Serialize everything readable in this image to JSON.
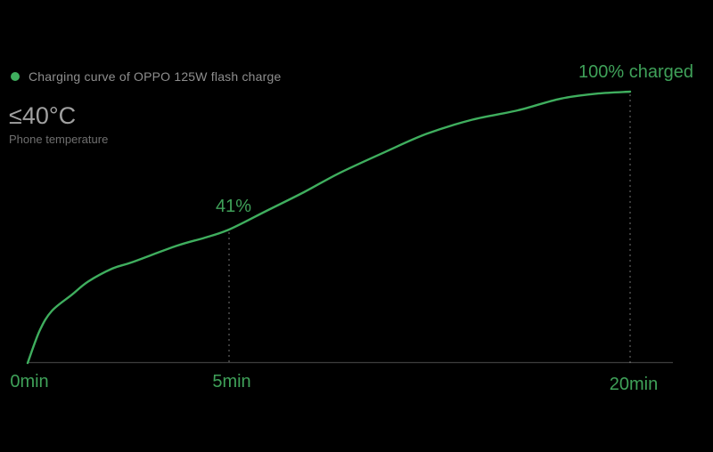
{
  "legend": {
    "label": "Charging curve of OPPO 125W flash charge"
  },
  "temperature": {
    "value": "≤40°C",
    "caption": "Phone temperature"
  },
  "annotations": {
    "end_label": "100% charged",
    "mid_label": "41%"
  },
  "x_ticks": [
    "0min",
    "5min",
    "20min"
  ],
  "colors": {
    "background": "#000000",
    "curve_green": "#3fae5e",
    "text_green": "#3fa159",
    "axis_gray": "#3d3d3d",
    "dash_gray": "#9b9b9b",
    "legend_text": "#8e8e8e",
    "temp_value": "#a0a0a0",
    "temp_caption": "#6f6f6f"
  },
  "chart_data": {
    "type": "line",
    "title": "Charging curve of OPPO 125W flash charge",
    "xlabel": "",
    "ylabel": "",
    "ylim": [
      0,
      100
    ],
    "x_tick_labels": [
      "0min",
      "5min",
      "20min"
    ],
    "x_tick_minutes": [
      0,
      5,
      20
    ],
    "grid": false,
    "legend_position": "top-left",
    "annotations": [
      {
        "t": 5,
        "pct": 41,
        "text": "41%"
      },
      {
        "t": 20,
        "pct": 100,
        "text": "100% charged"
      }
    ],
    "key_points": [
      {
        "t": 0,
        "pct": 0
      },
      {
        "t": 5,
        "pct": 41
      },
      {
        "t": 20,
        "pct": 100
      }
    ],
    "series": [
      {
        "name": "charge_percent",
        "points": [
          {
            "t": 0,
            "pct": 0
          },
          {
            "t": 0.3,
            "pct": 10
          },
          {
            "t": 0.6,
            "pct": 16
          },
          {
            "t": 1.1,
            "pct": 21
          },
          {
            "t": 1.5,
            "pct": 25
          },
          {
            "t": 2.1,
            "pct": 29
          },
          {
            "t": 2.6,
            "pct": 31
          },
          {
            "t": 3.7,
            "pct": 36
          },
          {
            "t": 4.4,
            "pct": 38.5
          },
          {
            "t": 5,
            "pct": 41
          },
          {
            "t": 6.4,
            "pct": 49
          },
          {
            "t": 7.8,
            "pct": 57
          },
          {
            "t": 9.1,
            "pct": 65
          },
          {
            "t": 10.8,
            "pct": 74
          },
          {
            "t": 12.4,
            "pct": 82
          },
          {
            "t": 14.1,
            "pct": 88
          },
          {
            "t": 15.8,
            "pct": 92
          },
          {
            "t": 17.4,
            "pct": 97
          },
          {
            "t": 18.8,
            "pct": 99.2
          },
          {
            "t": 20,
            "pct": 100
          }
        ]
      }
    ]
  }
}
